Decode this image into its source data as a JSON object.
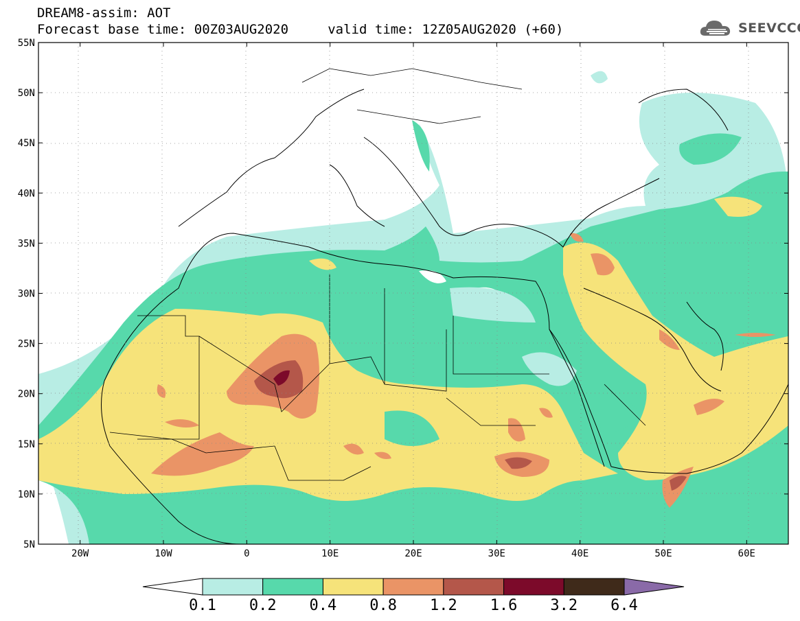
{
  "header": {
    "line1": "DREAM8-assim: AOT",
    "line2": "Forecast base time: 00Z03AUG2020     valid time: 12Z05AUG2020 (+60)"
  },
  "logo": {
    "text": "SEEVCCC",
    "icon": "cloud-icon"
  },
  "map": {
    "lon_range": [
      -25,
      65
    ],
    "lat_range": [
      5,
      55
    ],
    "lat_ticks": [
      "55N",
      "50N",
      "45N",
      "40N",
      "35N",
      "30N",
      "25N",
      "20N",
      "15N",
      "10N",
      "5N"
    ],
    "lon_ticks": [
      "20W",
      "10W",
      "0",
      "10E",
      "20E",
      "30E",
      "40E",
      "50E",
      "60E"
    ],
    "grid": "dotted"
  },
  "colorbar": {
    "labels": [
      "0.1",
      "0.2",
      "0.4",
      "0.8",
      "1.2",
      "1.6",
      "3.2",
      "6.4"
    ],
    "colors": [
      "#ffffff",
      "#b8ede4",
      "#57d9ab",
      "#f6e37a",
      "#ea9466",
      "#b4574a",
      "#7c0a2a",
      "#3f2a1a",
      "#8a6aa8"
    ]
  }
}
